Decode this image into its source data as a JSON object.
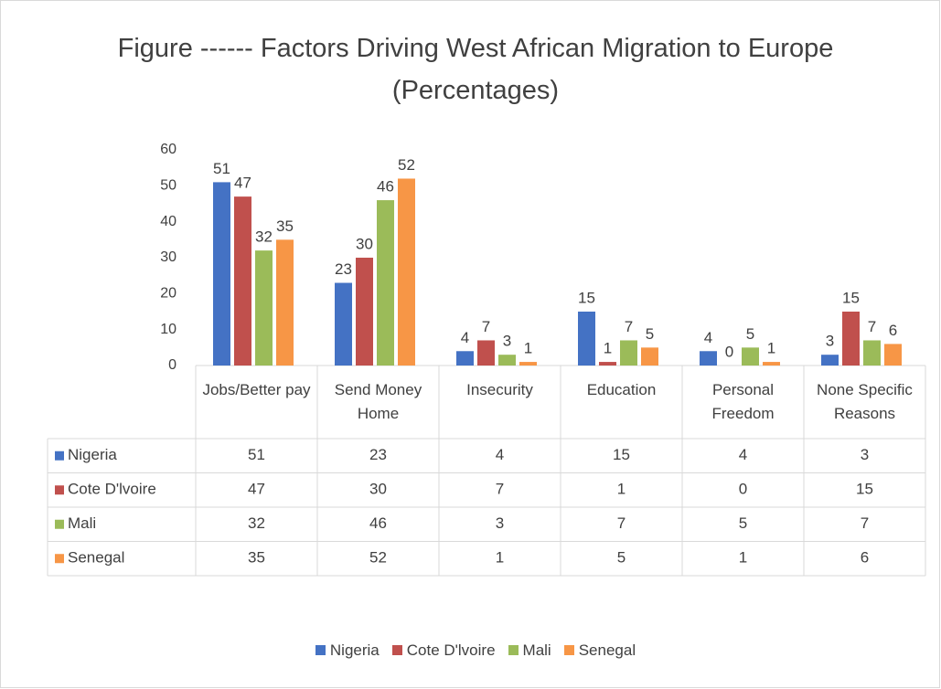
{
  "chart_data": {
    "type": "bar",
    "title": "Figure ------ Factors Driving West African Migration to Europe (Percentages)",
    "categories": [
      "Jobs/Better pay",
      "Send Money Home",
      "Insecurity",
      "Education",
      "Personal Freedom",
      "None Specific Reasons"
    ],
    "series": [
      {
        "name": "Nigeria",
        "color": "#4472c4",
        "values": [
          51,
          23,
          4,
          15,
          4,
          3
        ]
      },
      {
        "name": "Cote D'lvoire",
        "color": "#c0504d",
        "values": [
          47,
          30,
          7,
          1,
          0,
          15
        ]
      },
      {
        "name": "Mali",
        "color": "#9bbb59",
        "values": [
          32,
          46,
          3,
          7,
          5,
          7
        ]
      },
      {
        "name": "Senegal",
        "color": "#f79646",
        "values": [
          35,
          52,
          1,
          5,
          1,
          6
        ]
      }
    ],
    "ylim": [
      0,
      60
    ],
    "yticks": [
      0,
      10,
      20,
      30,
      40,
      50,
      60
    ],
    "grid": false,
    "legend": "bottom",
    "data_table": true
  }
}
